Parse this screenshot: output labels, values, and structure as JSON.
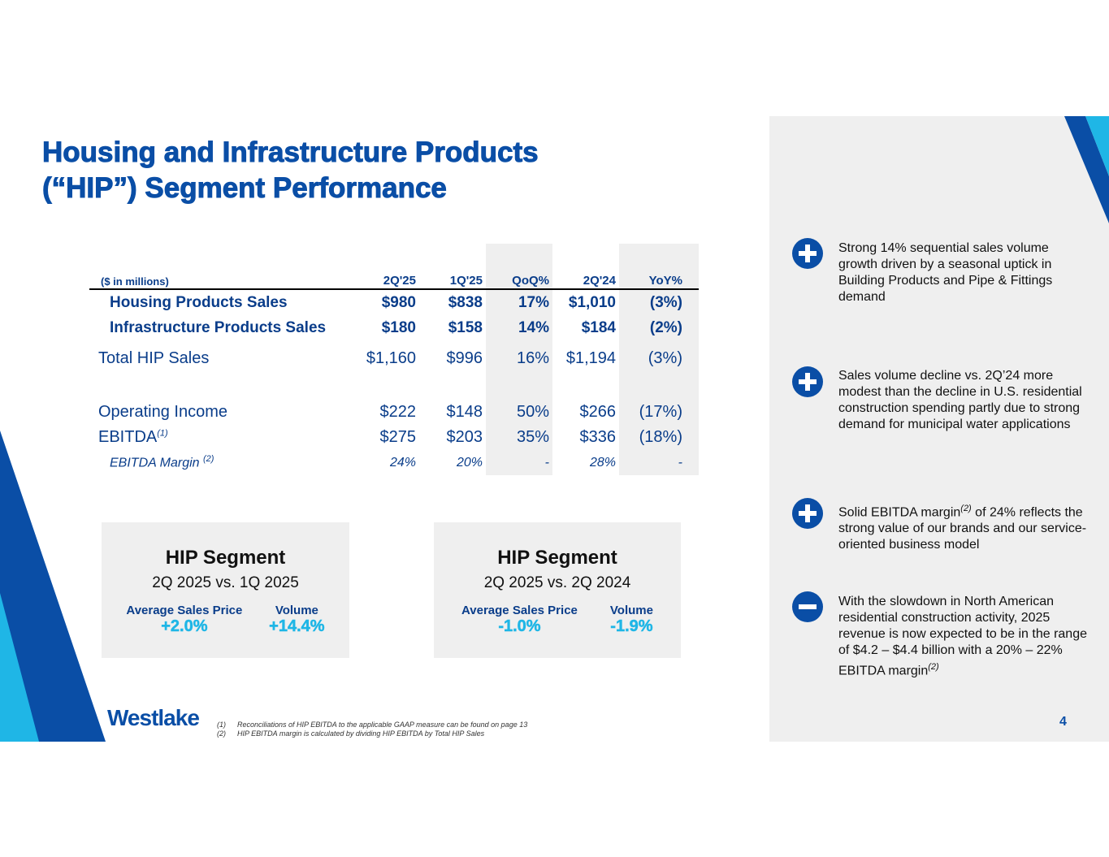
{
  "title": {
    "line1": "Housing and Infrastructure Products",
    "line2": "(“HIP”) Segment Performance"
  },
  "table": {
    "headers": [
      "($ in millions)",
      "2Q'25",
      "1Q'25",
      "QoQ%",
      "2Q'24",
      "YoY%"
    ],
    "rows": [
      {
        "label": "Housing Products Sales",
        "values": [
          "$980",
          "$838",
          "17%",
          "$1,010",
          "(3%)"
        ]
      },
      {
        "label": "Infrastructure Products Sales",
        "values": [
          "$180",
          "$158",
          "14%",
          "$184",
          "(2%)"
        ]
      },
      {
        "label": "Total HIP Sales",
        "values": [
          "$1,160",
          "$996",
          "16%",
          "$1,194",
          "(3%)"
        ]
      },
      {
        "label": "Operating Income",
        "values": [
          "$222",
          "$148",
          "50%",
          "$266",
          "(17%)"
        ]
      },
      {
        "label": "EBITDA",
        "sup": "(1)",
        "values": [
          "$275",
          "$203",
          "35%",
          "$336",
          "(18%)"
        ]
      },
      {
        "label": "EBITDA Margin",
        "sup": "(2)",
        "values": [
          "24%",
          "20%",
          "-",
          "28%",
          "-"
        ]
      }
    ]
  },
  "segments": [
    {
      "title": "HIP Segment",
      "subtitle": "2Q 2025 vs. 1Q 2025",
      "price_label": "Average Sales Price",
      "price_value": "+2.0%",
      "volume_label": "Volume",
      "volume_value": "+14.4%"
    },
    {
      "title": "HIP Segment",
      "subtitle": "2Q 2025 vs. 2Q 2024",
      "price_label": "Average Sales Price",
      "price_value": "-1.0%",
      "volume_label": "Volume",
      "volume_value": "-1.9%"
    }
  ],
  "bullets": [
    {
      "icon": "plus-icon",
      "text": "Strong 14% sequential sales volume growth driven by a seasonal uptick in Building Products and Pipe & Fittings demand"
    },
    {
      "icon": "plus-icon",
      "text": "Sales volume decline vs. 2Q’24 more modest than the decline in U.S. residential construction spending partly due to strong demand for municipal water applications"
    },
    {
      "icon": "plus-icon",
      "text_before": "Solid EBITDA margin",
      "sup": "(2)",
      "text_after": " of 24% reflects the strong value of our brands and our service-oriented business model"
    },
    {
      "icon": "minus-icon",
      "text_before": "With the slowdown in North American residential construction activity, 2025 revenue is now expected to be in the range of $4.2 – $4.4 billion with a 20% – 22% EBITDA margin",
      "sup": "(2)",
      "text_after": ""
    }
  ],
  "footnotes": [
    {
      "num": "(1)",
      "text": "Reconciliations of HIP EBITDA to the applicable GAAP measure can be found on page 13"
    },
    {
      "num": "(2)",
      "text": "HIP EBITDA margin is calculated by dividing HIP EBITDA by Total HIP Sales"
    }
  ],
  "logo": "Westlake",
  "page_number": "4",
  "colors": {
    "primary": "#0a4ea6",
    "dark_blue": "#0a3d8a",
    "accent_cyan": "#1fb6e6",
    "panel_gray": "#efefef"
  }
}
